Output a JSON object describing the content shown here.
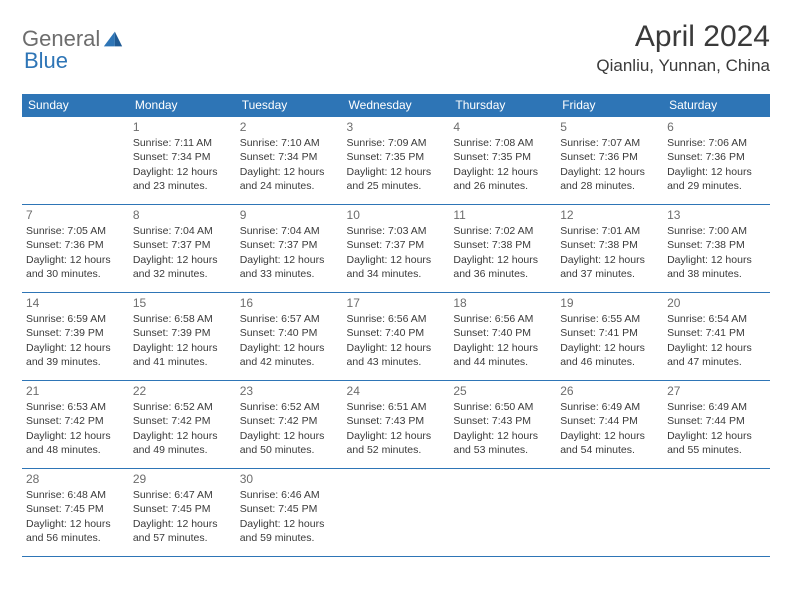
{
  "logo": {
    "text1": "General",
    "text2": "Blue"
  },
  "title": "April 2024",
  "location": "Qianliu, Yunnan, China",
  "colors": {
    "header_bg": "#2e75b6",
    "header_text": "#ffffff",
    "border": "#2e75b6",
    "body_text": "#3a3a3a",
    "daynum": "#6d6d6d",
    "logo_gray": "#6d6d6d",
    "logo_blue": "#2e75b6",
    "page_bg": "#ffffff"
  },
  "typography": {
    "title_fontsize": 30,
    "location_fontsize": 17,
    "th_fontsize": 12,
    "cell_fontsize": 10.5,
    "daynum_fontsize": 12
  },
  "weekdays": [
    "Sunday",
    "Monday",
    "Tuesday",
    "Wednesday",
    "Thursday",
    "Friday",
    "Saturday"
  ],
  "rows": [
    [
      null,
      {
        "day": "1",
        "sunrise": "7:11 AM",
        "sunset": "7:34 PM",
        "daylight": "12 hours and 23 minutes."
      },
      {
        "day": "2",
        "sunrise": "7:10 AM",
        "sunset": "7:34 PM",
        "daylight": "12 hours and 24 minutes."
      },
      {
        "day": "3",
        "sunrise": "7:09 AM",
        "sunset": "7:35 PM",
        "daylight": "12 hours and 25 minutes."
      },
      {
        "day": "4",
        "sunrise": "7:08 AM",
        "sunset": "7:35 PM",
        "daylight": "12 hours and 26 minutes."
      },
      {
        "day": "5",
        "sunrise": "7:07 AM",
        "sunset": "7:36 PM",
        "daylight": "12 hours and 28 minutes."
      },
      {
        "day": "6",
        "sunrise": "7:06 AM",
        "sunset": "7:36 PM",
        "daylight": "12 hours and 29 minutes."
      }
    ],
    [
      {
        "day": "7",
        "sunrise": "7:05 AM",
        "sunset": "7:36 PM",
        "daylight": "12 hours and 30 minutes."
      },
      {
        "day": "8",
        "sunrise": "7:04 AM",
        "sunset": "7:37 PM",
        "daylight": "12 hours and 32 minutes."
      },
      {
        "day": "9",
        "sunrise": "7:04 AM",
        "sunset": "7:37 PM",
        "daylight": "12 hours and 33 minutes."
      },
      {
        "day": "10",
        "sunrise": "7:03 AM",
        "sunset": "7:37 PM",
        "daylight": "12 hours and 34 minutes."
      },
      {
        "day": "11",
        "sunrise": "7:02 AM",
        "sunset": "7:38 PM",
        "daylight": "12 hours and 36 minutes."
      },
      {
        "day": "12",
        "sunrise": "7:01 AM",
        "sunset": "7:38 PM",
        "daylight": "12 hours and 37 minutes."
      },
      {
        "day": "13",
        "sunrise": "7:00 AM",
        "sunset": "7:38 PM",
        "daylight": "12 hours and 38 minutes."
      }
    ],
    [
      {
        "day": "14",
        "sunrise": "6:59 AM",
        "sunset": "7:39 PM",
        "daylight": "12 hours and 39 minutes."
      },
      {
        "day": "15",
        "sunrise": "6:58 AM",
        "sunset": "7:39 PM",
        "daylight": "12 hours and 41 minutes."
      },
      {
        "day": "16",
        "sunrise": "6:57 AM",
        "sunset": "7:40 PM",
        "daylight": "12 hours and 42 minutes."
      },
      {
        "day": "17",
        "sunrise": "6:56 AM",
        "sunset": "7:40 PM",
        "daylight": "12 hours and 43 minutes."
      },
      {
        "day": "18",
        "sunrise": "6:56 AM",
        "sunset": "7:40 PM",
        "daylight": "12 hours and 44 minutes."
      },
      {
        "day": "19",
        "sunrise": "6:55 AM",
        "sunset": "7:41 PM",
        "daylight": "12 hours and 46 minutes."
      },
      {
        "day": "20",
        "sunrise": "6:54 AM",
        "sunset": "7:41 PM",
        "daylight": "12 hours and 47 minutes."
      }
    ],
    [
      {
        "day": "21",
        "sunrise": "6:53 AM",
        "sunset": "7:42 PM",
        "daylight": "12 hours and 48 minutes."
      },
      {
        "day": "22",
        "sunrise": "6:52 AM",
        "sunset": "7:42 PM",
        "daylight": "12 hours and 49 minutes."
      },
      {
        "day": "23",
        "sunrise": "6:52 AM",
        "sunset": "7:42 PM",
        "daylight": "12 hours and 50 minutes."
      },
      {
        "day": "24",
        "sunrise": "6:51 AM",
        "sunset": "7:43 PM",
        "daylight": "12 hours and 52 minutes."
      },
      {
        "day": "25",
        "sunrise": "6:50 AM",
        "sunset": "7:43 PM",
        "daylight": "12 hours and 53 minutes."
      },
      {
        "day": "26",
        "sunrise": "6:49 AM",
        "sunset": "7:44 PM",
        "daylight": "12 hours and 54 minutes."
      },
      {
        "day": "27",
        "sunrise": "6:49 AM",
        "sunset": "7:44 PM",
        "daylight": "12 hours and 55 minutes."
      }
    ],
    [
      {
        "day": "28",
        "sunrise": "6:48 AM",
        "sunset": "7:45 PM",
        "daylight": "12 hours and 56 minutes."
      },
      {
        "day": "29",
        "sunrise": "6:47 AM",
        "sunset": "7:45 PM",
        "daylight": "12 hours and 57 minutes."
      },
      {
        "day": "30",
        "sunrise": "6:46 AM",
        "sunset": "7:45 PM",
        "daylight": "12 hours and 59 minutes."
      },
      null,
      null,
      null,
      null
    ]
  ],
  "labels": {
    "sunrise": "Sunrise:",
    "sunset": "Sunset:",
    "daylight": "Daylight:"
  }
}
